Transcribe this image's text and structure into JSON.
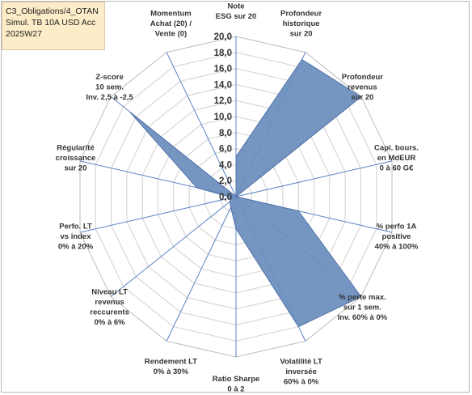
{
  "title_lines": [
    "C3_Obligations/4_OTAN",
    "Simul. TB 10A USD Acc",
    "2025W27"
  ],
  "chart_data": {
    "type": "radar",
    "title": "C3_Obligations/4_OTAN Simul. TB 10A USD Acc 2025W27",
    "rlim": [
      0,
      20
    ],
    "tick_step": 2,
    "tick_labels": [
      "0,0",
      "2,0",
      "4,0",
      "6,0",
      "8,0",
      "10,0",
      "12,0",
      "14,0",
      "16,0",
      "18,0",
      "20,0"
    ],
    "grid": true,
    "fill_color": "#6a8dbd",
    "line_color": "#4f72a8",
    "grid_color": "#d0d0d0",
    "spoke_color": "#5b84c4",
    "categories": [
      [
        "Note",
        "ESG sur 20"
      ],
      [
        "Profondeur",
        "historique",
        "sur 20"
      ],
      [
        "Profondeur",
        "revenus",
        "sur 20"
      ],
      [
        "Capi. bours.",
        "en MdEUR",
        "0 à 60 G€"
      ],
      [
        "% perfo 1A",
        "positive",
        "40% à 100%"
      ],
      [
        "% perte max.",
        "sur 1 sem.",
        "Inv. 60% à 0%"
      ],
      [
        "Volatilité LT",
        "inversée",
        "60% à 0%"
      ],
      [
        "Ratio Sharpe",
        "0 à 2"
      ],
      [
        "Rendement LT",
        "0% à 30%"
      ],
      [
        "Niveau LT",
        "revenus",
        "reccurents",
        "0% à 6%"
      ],
      [
        "Perfo. LT",
        "vs index",
        "0% à 20%"
      ],
      [
        "Régularité",
        "croissance",
        "sur 20"
      ],
      [
        "Z-score",
        "10 sem.",
        "Inv. 2,5 à -2,5"
      ],
      [
        "Momentum",
        "Achat (20) /",
        "Vente (0)"
      ]
    ],
    "series": [
      {
        "values": [
          5,
          19,
          20,
          0,
          8,
          20,
          18,
          4,
          1.5,
          1,
          0.5,
          5,
          17,
          0
        ]
      }
    ]
  }
}
